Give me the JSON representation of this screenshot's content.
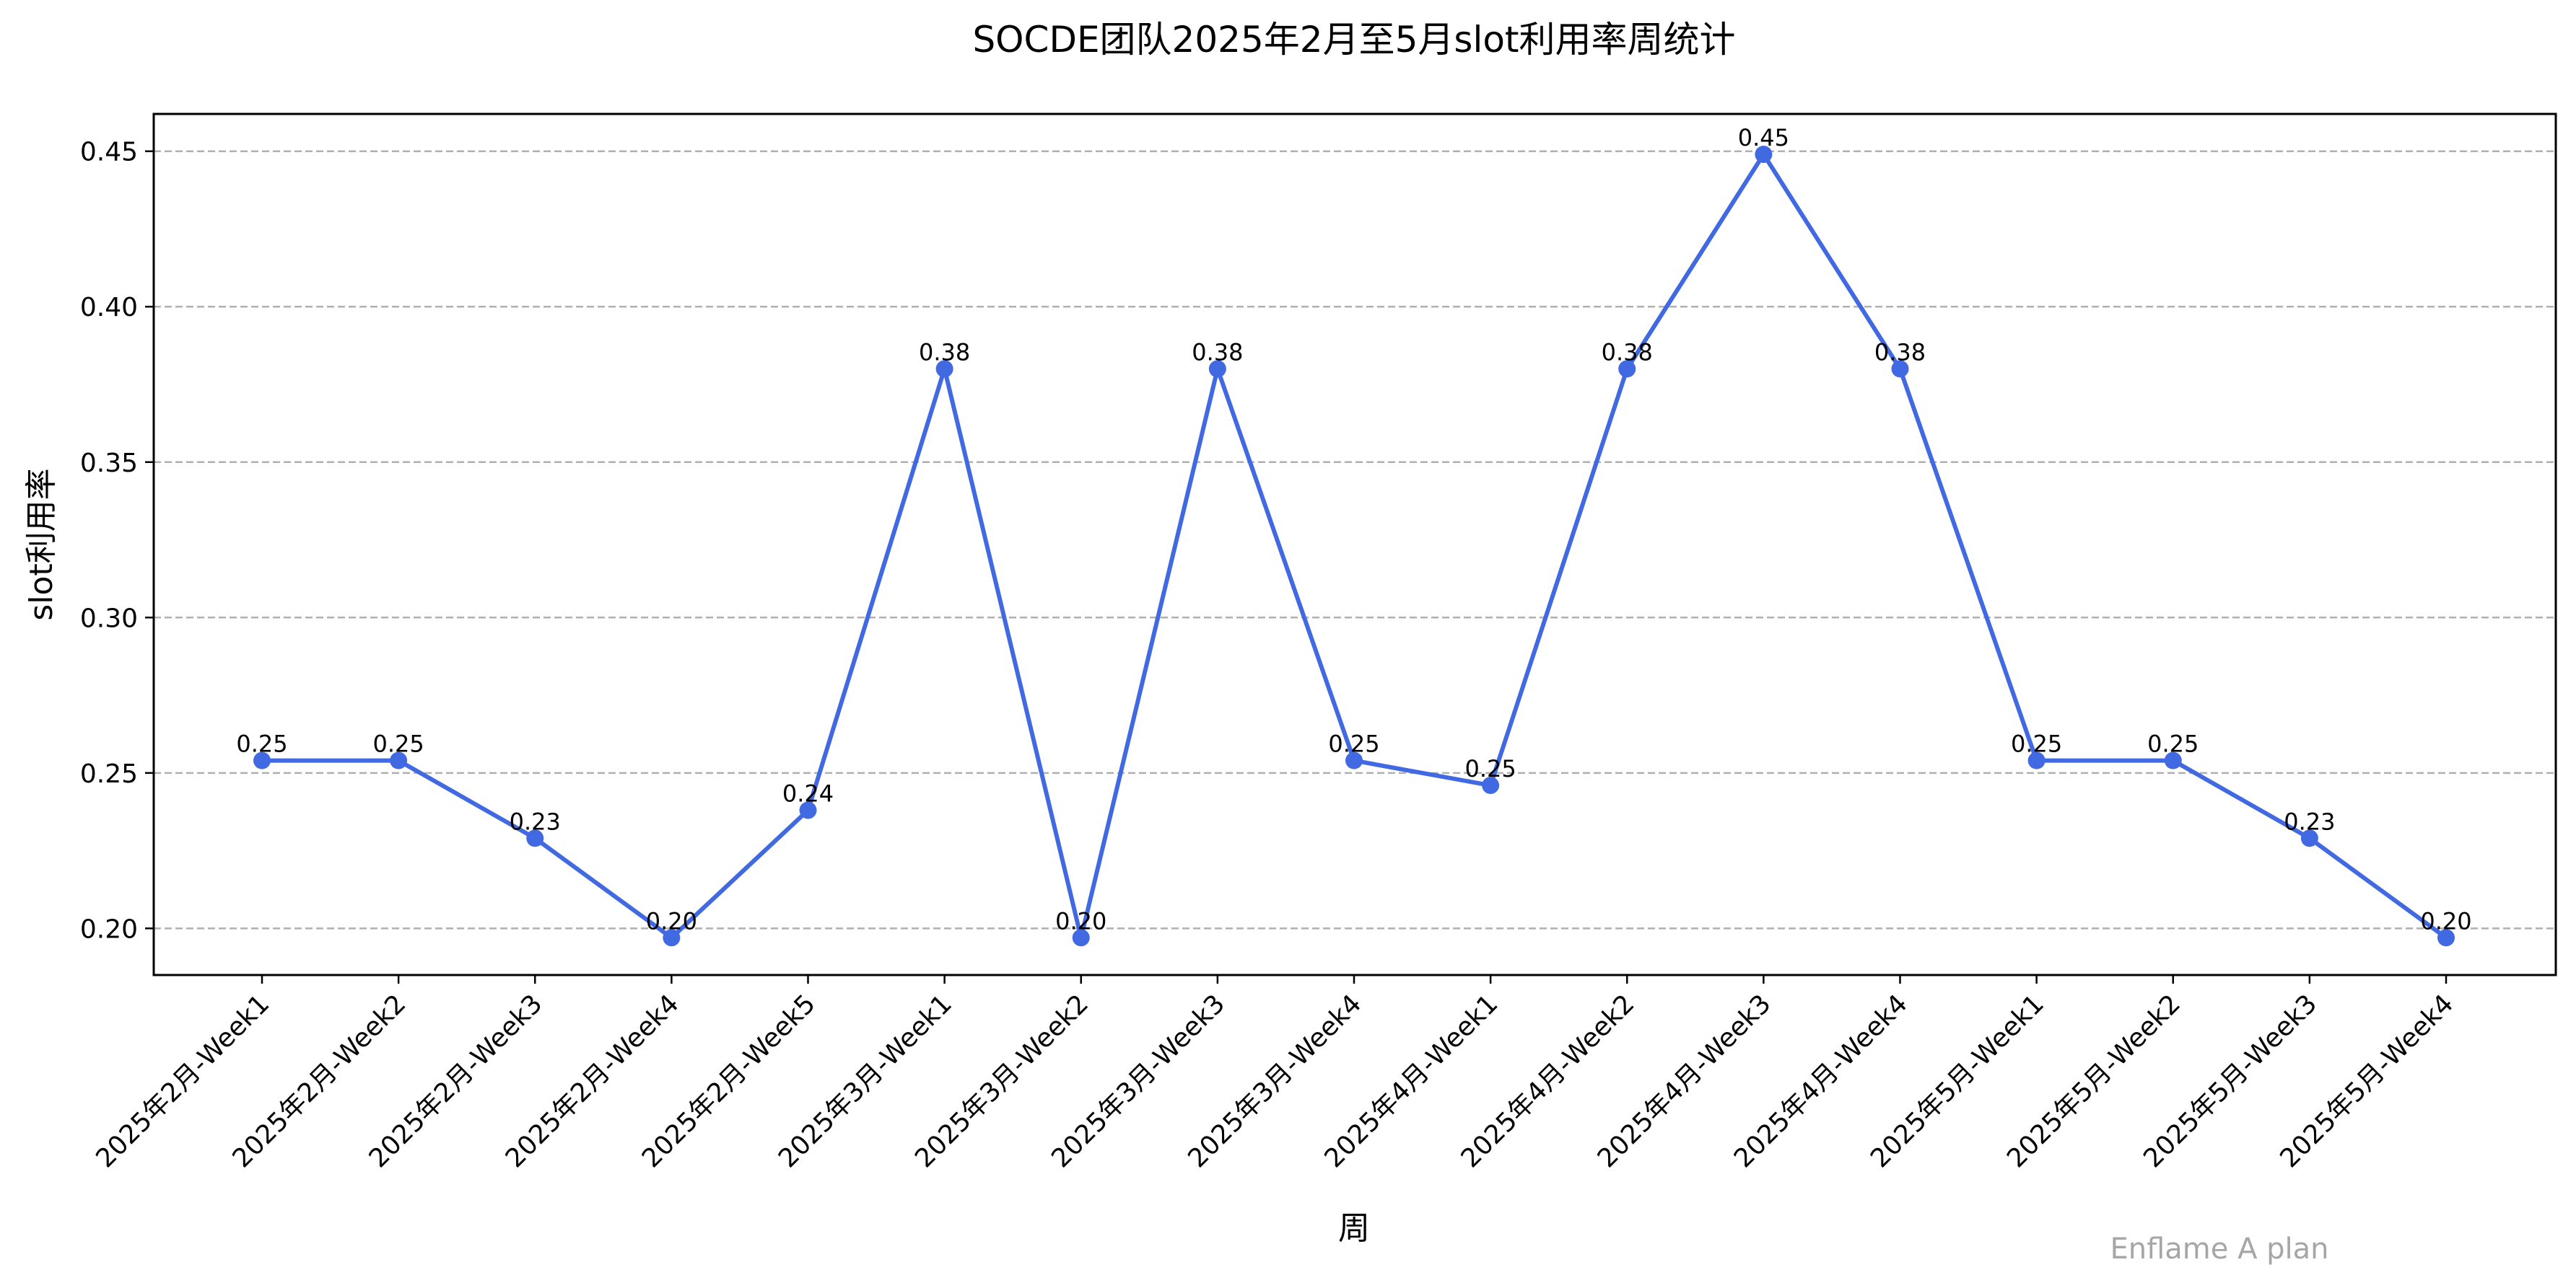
{
  "chart_data": {
    "type": "line",
    "title": "SOCDE团队2025年2月至5月slot利用率周统计",
    "xlabel": "周",
    "ylabel": "slot利用率",
    "categories": [
      "2025年2月-Week1",
      "2025年2月-Week2",
      "2025年2月-Week3",
      "2025年2月-Week4",
      "2025年2月-Week5",
      "2025年3月-Week1",
      "2025年3月-Week2",
      "2025年3月-Week3",
      "2025年3月-Week4",
      "2025年4月-Week1",
      "2025年4月-Week2",
      "2025年4月-Week3",
      "2025年4月-Week4",
      "2025年5月-Week1",
      "2025年5月-Week2",
      "2025年5月-Week3",
      "2025年5月-Week4"
    ],
    "values": [
      0.254,
      0.254,
      0.229,
      0.197,
      0.238,
      0.38,
      0.197,
      0.38,
      0.254,
      0.246,
      0.38,
      0.449,
      0.38,
      0.254,
      0.254,
      0.229,
      0.197
    ],
    "data_labels": [
      "0.25",
      "0.25",
      "0.23",
      "0.20",
      "0.24",
      "0.38",
      "0.20",
      "0.38",
      "0.25",
      "0.25",
      "0.38",
      "0.45",
      "0.38",
      "0.25",
      "0.25",
      "0.23",
      "0.20"
    ],
    "yticks": [
      0.2,
      0.25,
      0.3,
      0.35,
      0.4,
      0.45
    ],
    "ytick_labels": [
      "0.20",
      "0.25",
      "0.30",
      "0.35",
      "0.40",
      "0.45"
    ],
    "ylim": [
      0.185,
      0.462
    ],
    "grid": "y-dashed",
    "line_color": "#4169e1",
    "grid_color": "#b0b0b0"
  },
  "watermark": "Enflame A plan"
}
